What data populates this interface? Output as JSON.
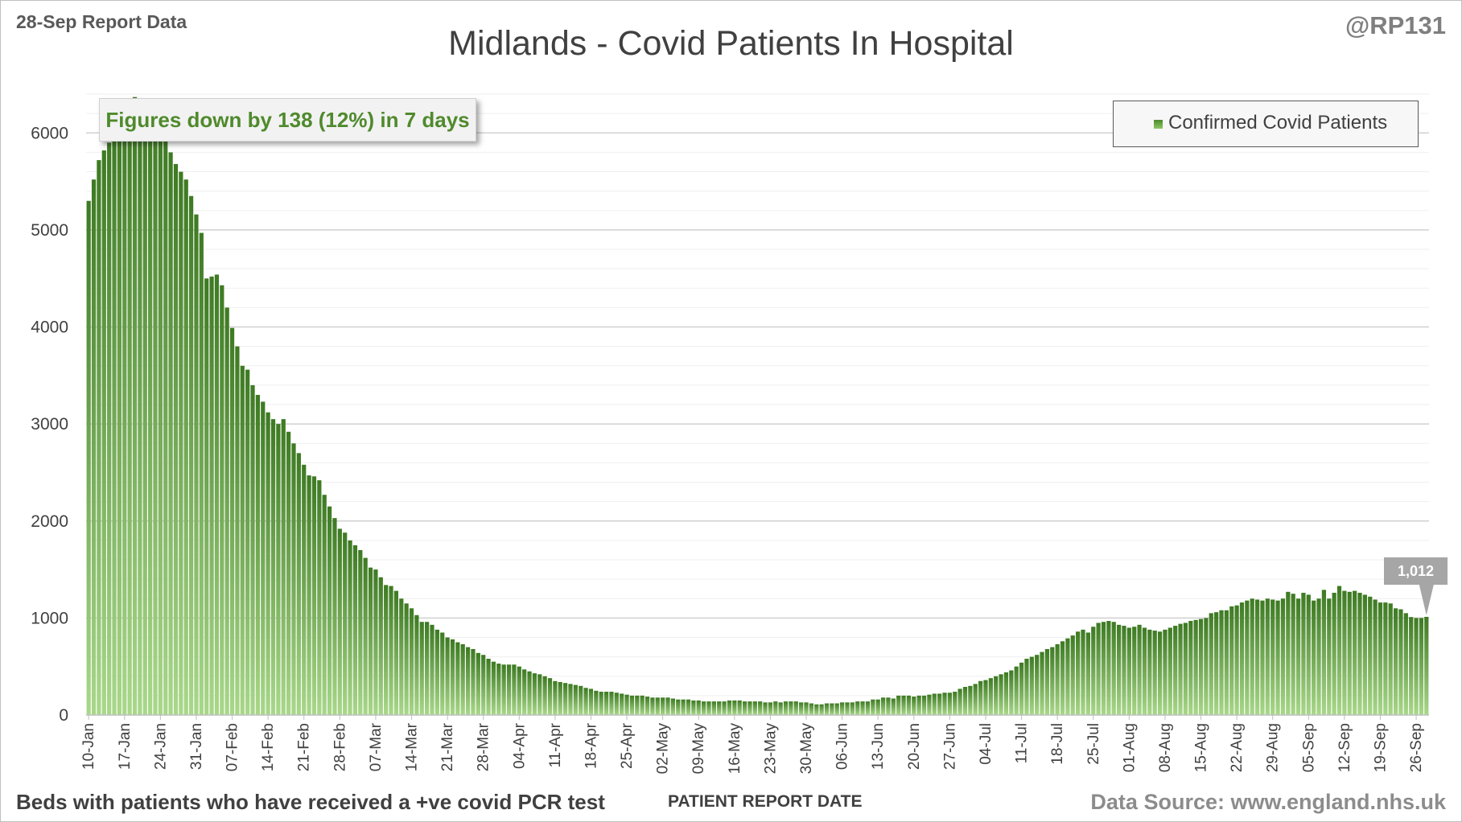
{
  "header": {
    "report_label": "28-Sep Report Data",
    "handle": "@RP131",
    "title": "Midlands - Covid Patients In Hospital"
  },
  "callout": {
    "text": "Figures down by 138 (12%) in 7 days"
  },
  "legend": {
    "label": "Confirmed Covid Patients"
  },
  "last_value_label": "1,012",
  "footer": {
    "note": "Beds with patients who have received a +ve covid PCR test",
    "source": "Data Source: www.england.nhs.uk"
  },
  "colors": {
    "bar_top": "#3d7a22",
    "bar_bottom": "#a9d88a",
    "grid": "#d9d9d9",
    "text": "#404040"
  },
  "chart_data": {
    "type": "bar",
    "title": "Midlands - Covid Patients In Hospital",
    "xlabel": "PATIENT REPORT DATE",
    "ylabel": "",
    "ylim": [
      0,
      6500
    ],
    "yticks": [
      0,
      1000,
      2000,
      3000,
      4000,
      5000,
      6000
    ],
    "grid": true,
    "legend_position": "top-right",
    "first_date": "10-Jan",
    "last_date": "27-Sep",
    "xtick_labels": [
      "10-Jan",
      "17-Jan",
      "24-Jan",
      "31-Jan",
      "07-Feb",
      "14-Feb",
      "21-Feb",
      "28-Feb",
      "07-Mar",
      "14-Mar",
      "21-Mar",
      "28-Mar",
      "04-Apr",
      "11-Apr",
      "18-Apr",
      "25-Apr",
      "02-May",
      "09-May",
      "16-May",
      "23-May",
      "30-May",
      "06-Jun",
      "13-Jun",
      "20-Jun",
      "27-Jun",
      "04-Jul",
      "11-Jul",
      "18-Jul",
      "25-Jul",
      "01-Aug",
      "08-Aug",
      "15-Aug",
      "22-Aug",
      "29-Aug",
      "05-Sep",
      "12-Sep",
      "19-Sep",
      "26-Sep"
    ],
    "series": [
      {
        "name": "Confirmed Covid Patients",
        "values": [
          5300,
          5520,
          5720,
          5820,
          5900,
          6050,
          6200,
          6290,
          6330,
          6370,
          6320,
          6300,
          6320,
          6310,
          6150,
          6000,
          5800,
          5680,
          5600,
          5520,
          5350,
          5160,
          4970,
          4500,
          4520,
          4540,
          4430,
          4200,
          3990,
          3800,
          3600,
          3560,
          3400,
          3300,
          3230,
          3120,
          3050,
          3000,
          3050,
          2920,
          2800,
          2700,
          2580,
          2470,
          2460,
          2420,
          2270,
          2150,
          2030,
          1920,
          1880,
          1800,
          1750,
          1700,
          1620,
          1520,
          1500,
          1420,
          1340,
          1330,
          1280,
          1200,
          1150,
          1100,
          1030,
          960,
          960,
          930,
          880,
          850,
          800,
          780,
          750,
          730,
          700,
          680,
          640,
          620,
          580,
          550,
          530,
          520,
          520,
          520,
          500,
          470,
          450,
          430,
          420,
          400,
          380,
          350,
          340,
          330,
          320,
          310,
          300,
          280,
          270,
          250,
          240,
          240,
          240,
          230,
          220,
          210,
          200,
          200,
          200,
          190,
          180,
          180,
          180,
          180,
          170,
          160,
          160,
          160,
          150,
          150,
          140,
          140,
          140,
          140,
          140,
          150,
          150,
          150,
          140,
          140,
          140,
          140,
          130,
          130,
          140,
          130,
          140,
          140,
          140,
          130,
          130,
          120,
          110,
          110,
          120,
          120,
          120,
          130,
          130,
          130,
          140,
          140,
          140,
          160,
          160,
          180,
          180,
          170,
          200,
          200,
          200,
          190,
          200,
          200,
          210,
          220,
          220,
          230,
          230,
          240,
          270,
          290,
          300,
          320,
          350,
          360,
          380,
          400,
          420,
          440,
          460,
          500,
          540,
          580,
          600,
          620,
          650,
          680,
          700,
          730,
          760,
          790,
          820,
          860,
          880,
          850,
          910,
          950,
          960,
          970,
          960,
          930,
          920,
          900,
          910,
          930,
          900,
          880,
          870,
          860,
          880,
          900,
          920,
          940,
          950,
          970,
          980,
          990,
          1000,
          1050,
          1060,
          1080,
          1080,
          1120,
          1130,
          1160,
          1180,
          1200,
          1190,
          1180,
          1200,
          1190,
          1180,
          1200,
          1270,
          1250,
          1200,
          1260,
          1240,
          1180,
          1200,
          1290,
          1200,
          1260,
          1330,
          1280,
          1270,
          1280,
          1260,
          1240,
          1220,
          1190,
          1160,
          1160,
          1150,
          1100,
          1090,
          1050,
          1010,
          1000,
          1000,
          1012
        ]
      }
    ]
  }
}
